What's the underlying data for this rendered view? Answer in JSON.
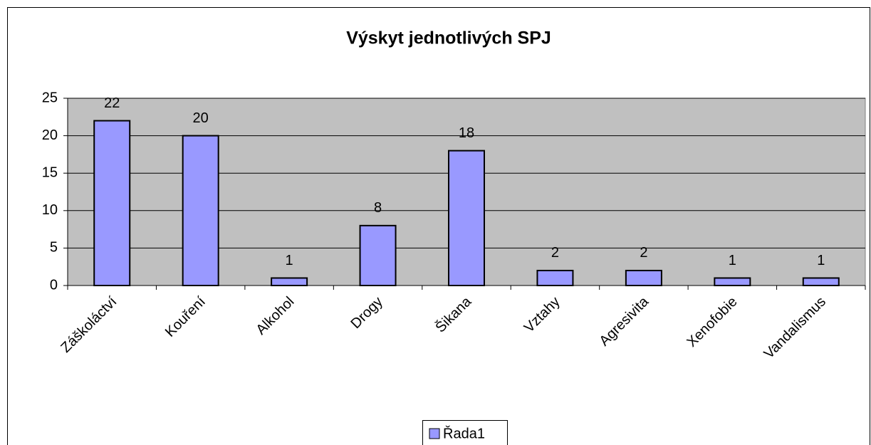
{
  "chart_data": {
    "type": "bar",
    "title": "Výskyt jednotlivých SPJ",
    "categories": [
      "Záškoláctví",
      "Kouření",
      "Alkohol",
      "Drogy",
      "Šikana",
      "Vztahy",
      "Agresivita",
      "Xenofobie",
      "Vandalismus"
    ],
    "series": [
      {
        "name": "Řada1",
        "color": "#9999ff",
        "values": [
          22,
          20,
          1,
          8,
          18,
          2,
          2,
          1,
          1
        ]
      }
    ],
    "ylim": [
      0,
      25
    ],
    "yticks": [
      0,
      5,
      10,
      15,
      20,
      25
    ],
    "grid": true,
    "legend": "bottom"
  }
}
